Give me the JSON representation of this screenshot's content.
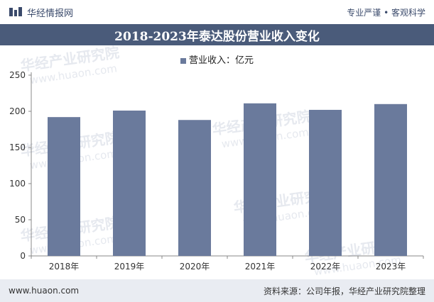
{
  "header": {
    "brand": "华经情报网",
    "tagline": "专业严谨 • 客观科学"
  },
  "title": "2018-2023年泰达股份营业收入变化",
  "legend": "营业收入：亿元",
  "footer": {
    "url": "www.huaon.com",
    "source": "资料来源：公司年报，华经产业研究院整理"
  },
  "watermark": {
    "cn": "华经产业研究院",
    "url": "www.huaon.com"
  },
  "colors": {
    "bar": "#6a7a9c",
    "title_bg": "#4a5b7a"
  },
  "chart_data": {
    "type": "bar",
    "categories": [
      "2018年",
      "2019年",
      "2020年",
      "2021年",
      "2022年",
      "2023年"
    ],
    "series": [
      {
        "name": "营业收入：亿元",
        "values": [
          192,
          201,
          188,
          211,
          202,
          210
        ]
      }
    ],
    "ylim": [
      0,
      250
    ],
    "yticks": [
      0,
      50,
      100,
      150,
      200,
      250
    ],
    "grid": false,
    "legend_position": "top-center"
  }
}
